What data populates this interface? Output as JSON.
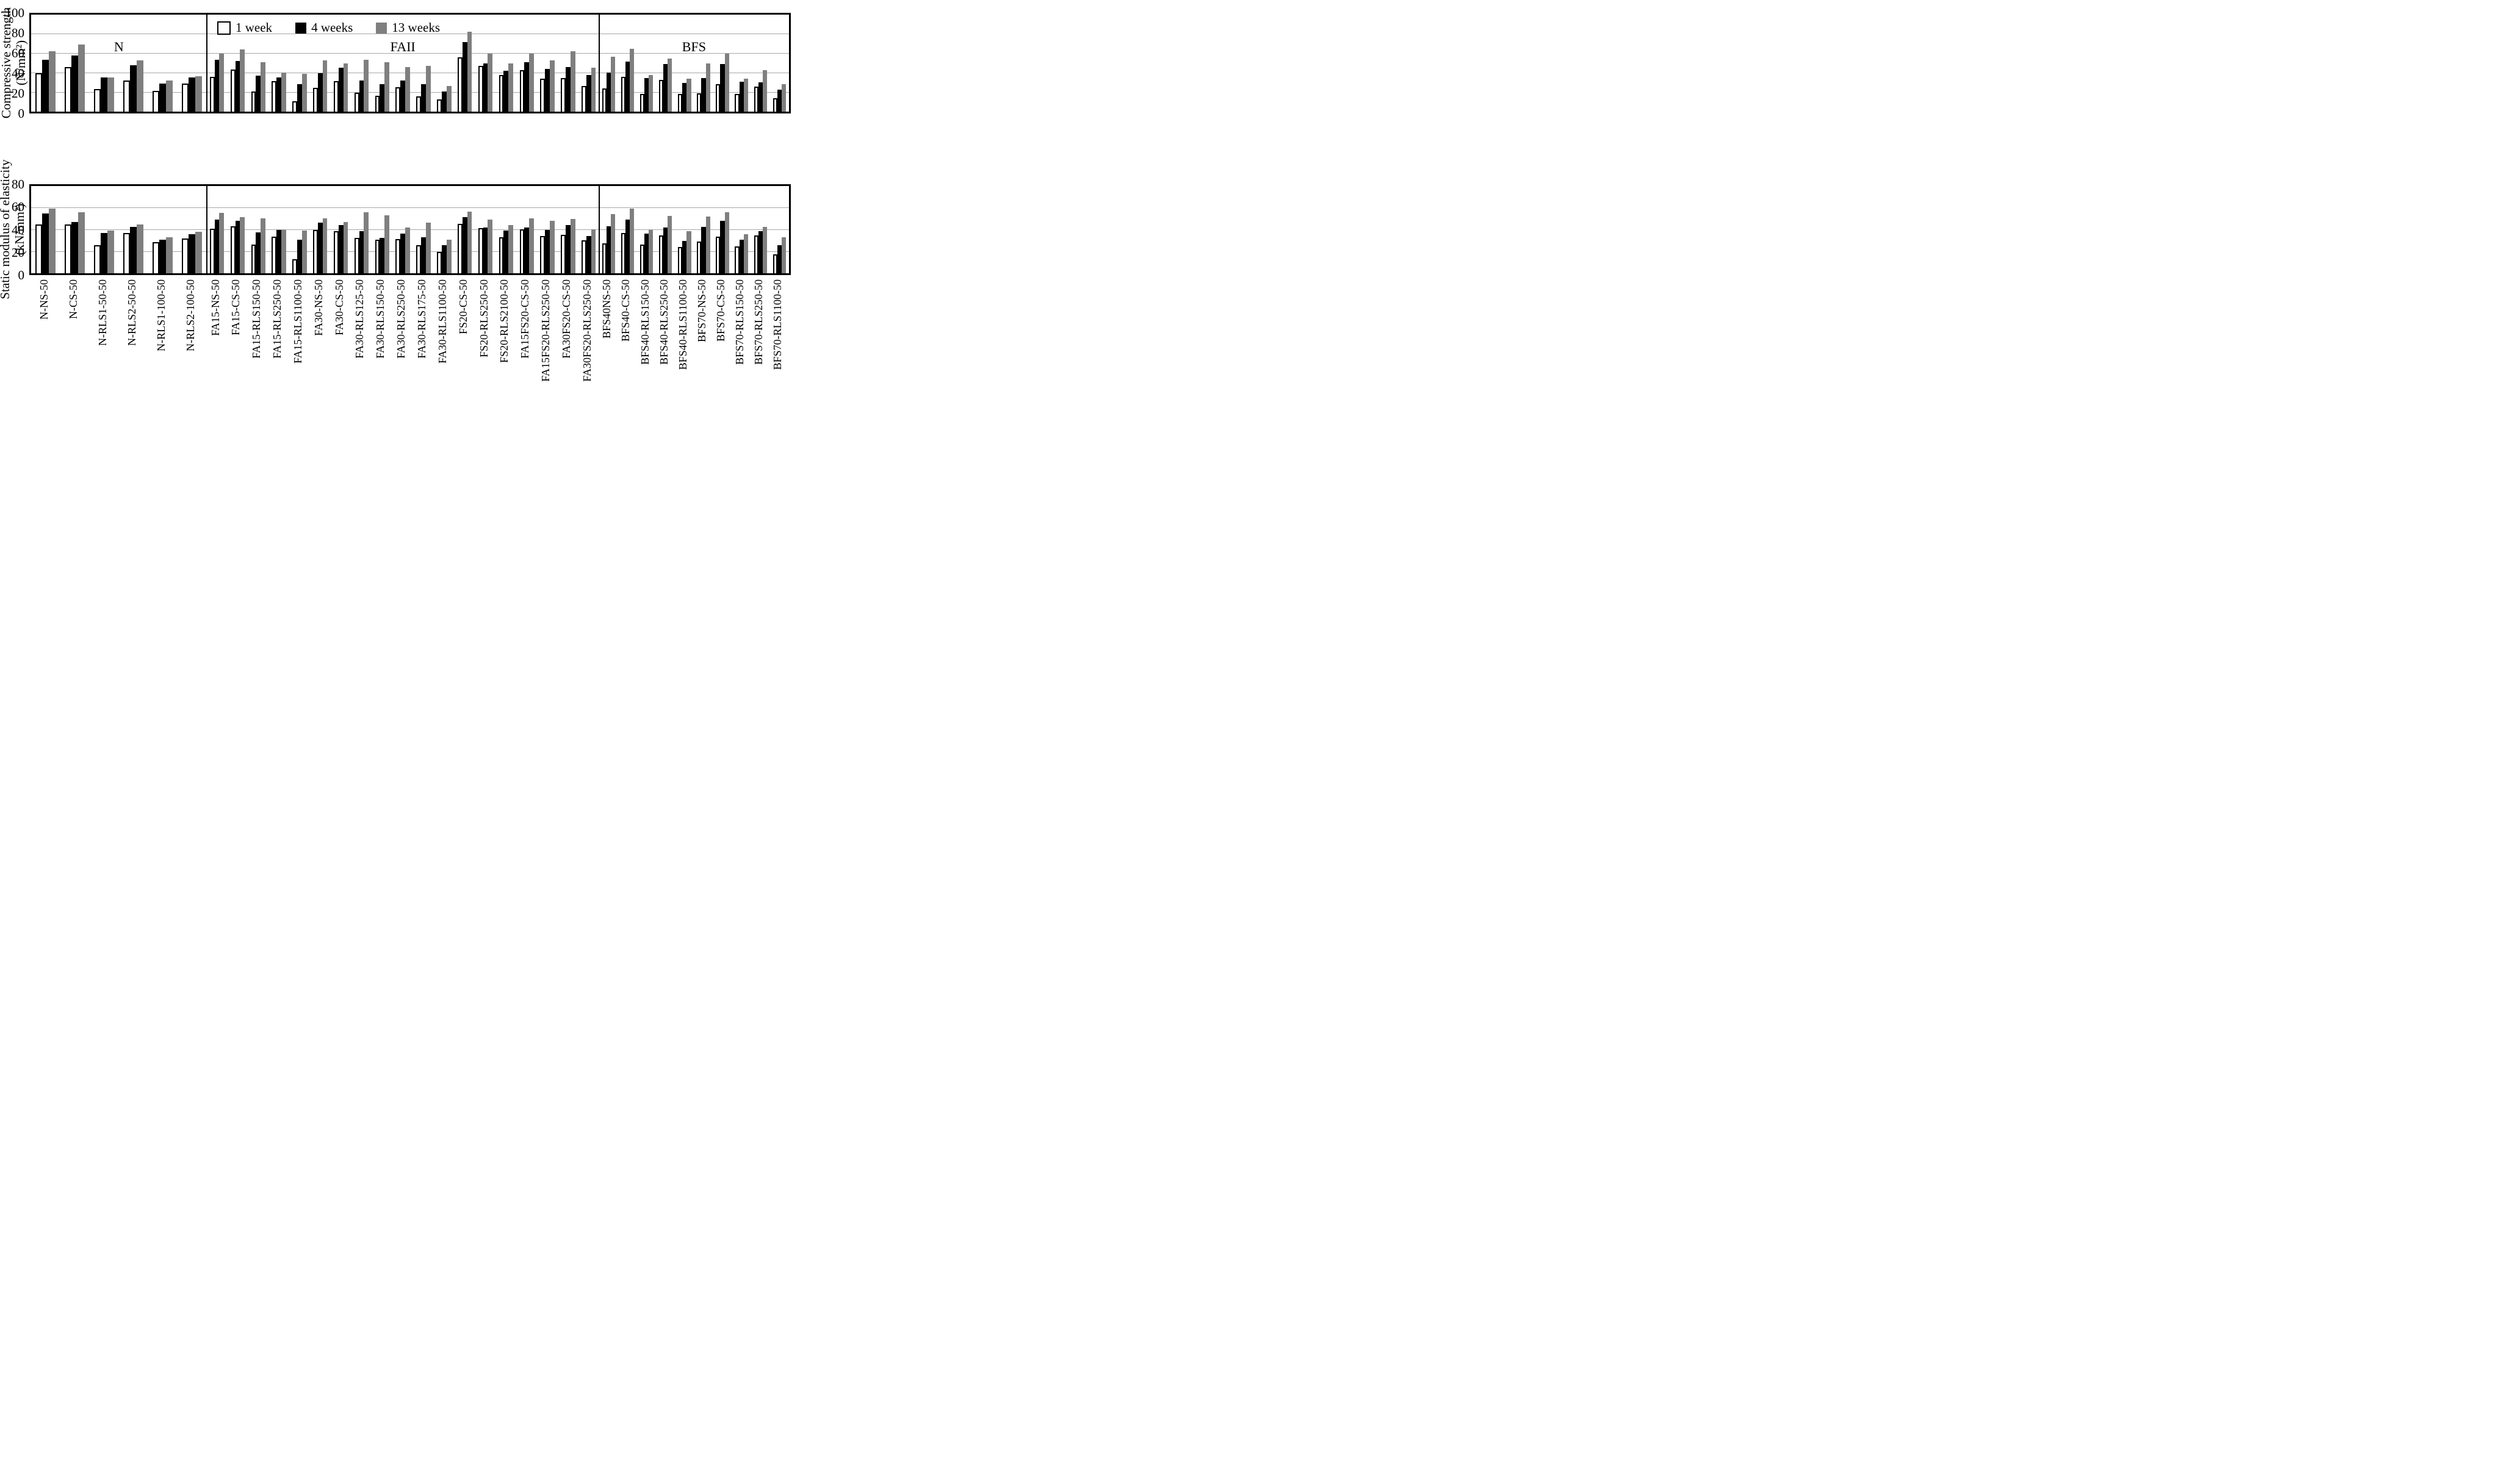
{
  "figure_title": "",
  "legend": {
    "items": [
      "1 week",
      "4 weeks",
      "13 weeks"
    ]
  },
  "colors": {
    "bar_1_week": "#ffffff",
    "bar_4_weeks": "#000000",
    "bar_13_weeks": "#7f7f7f",
    "bar_outline": "#000000",
    "gridline": "#a8a8a8",
    "frame": "#000000"
  },
  "chart_data": [
    {
      "type": "bar",
      "title": "",
      "ylabel_line1": "Compressive strength",
      "ylabel_line2": "(N/mm²)",
      "ylim": [
        0,
        100
      ],
      "yticks": [
        0,
        20,
        40,
        60,
        80,
        100
      ],
      "grid": "horizontal",
      "legend_entries": [
        "1 week",
        "4 weeks",
        "13 weeks"
      ],
      "legend_position": "inside-top",
      "show_section_labels": true,
      "sections": [
        {
          "label": "N",
          "categories": [
            "N-NS-50",
            "N-CS-50",
            "N-RLS1-50-50",
            "N-RLS2-50-50",
            "N-RLS1-100-50",
            "N-RLS2-100-50"
          ],
          "series": [
            {
              "name": "1 week",
              "values": [
                39.5,
                46,
                23.5,
                32,
                21.5,
                29
              ]
            },
            {
              "name": "4 weeks",
              "values": [
                53.5,
                58,
                35,
                48,
                29,
                35
              ]
            },
            {
              "name": "13 weeks",
              "values": [
                62,
                69,
                35.5,
                53,
                32,
                36.5
              ]
            }
          ]
        },
        {
          "label": "FAII",
          "categories": [
            "FA15-NS-50",
            "FA15-CS-50",
            "FA15-RLS150-50",
            "FA15-RLS250-50",
            "FA15-RLS1100-50",
            "FA30-NS-50",
            "FA30-CS-50",
            "FA30-RLS125-50",
            "FA30-RLS150-50",
            "FA30-RLS250-50",
            "FA30-RLS175-50",
            "FA30-RLS1100-50",
            "FS20-CS-50",
            "FS20-RLS250-50",
            "FS20-RLS2100-50",
            "FA15FS20-CS-50",
            "FA15FS20-RLS250-50",
            "FA30FS20-CS-50",
            "FA30FS20-RLS250-50"
          ],
          "series": [
            {
              "name": "1 week",
              "values": [
                36,
                43.5,
                21,
                31.5,
                11,
                24.5,
                31.5,
                19.5,
                16.5,
                25,
                15.5,
                12.5,
                56,
                47,
                37.5,
                42.5,
                34,
                34.5,
                26.5
              ]
            },
            {
              "name": "4 weeks",
              "values": [
                53.5,
                52.5,
                37,
                35.5,
                28,
                39.5,
                45,
                32,
                28.5,
                32,
                28,
                20.5,
                71.5,
                49.5,
                42,
                51,
                44,
                46,
                38
              ]
            },
            {
              "name": "13 weeks",
              "values": [
                60,
                64,
                51,
                40,
                39,
                53,
                49.5,
                53.5,
                51,
                46,
                47,
                26.5,
                82.5,
                59.5,
                49.5,
                60,
                53,
                62,
                45
              ]
            }
          ]
        },
        {
          "label": "BFS",
          "categories": [
            "BFS40NS-50",
            "BFS40-CS-50",
            "BFS40-RLS150-50",
            "BFS40-RLS250-50",
            "BFS40-RLS1100-50",
            "BFS70-NS-50",
            "BFS70-CS-50",
            "BFS70-RLS150-50",
            "BFS70-RLS250-50",
            "BFS70-RLS1100-50"
          ],
          "series": [
            {
              "name": "1 week",
              "values": [
                24,
                36,
                18.5,
                32.5,
                18.5,
                19,
                28,
                18.5,
                25.5,
                14
              ]
            },
            {
              "name": "4 weeks",
              "values": [
                40,
                51.5,
                34.5,
                49,
                29.5,
                34.5,
                49,
                31,
                30.5,
                22.5
              ]
            },
            {
              "name": "13 weeks",
              "values": [
                56.5,
                65,
                37.5,
                54.5,
                34,
                49.5,
                60,
                34,
                43,
                28
              ]
            }
          ]
        }
      ]
    },
    {
      "type": "bar",
      "title": "",
      "ylabel_line1": "Static modulus of elasticity",
      "ylabel_line2": "(kN/mm²)",
      "ylim": [
        0,
        80
      ],
      "yticks": [
        0,
        20,
        40,
        60,
        80
      ],
      "grid": "horizontal",
      "legend_entries": [
        "1 week",
        "4 weeks",
        "13 weeks"
      ],
      "legend_position": "none",
      "show_section_labels": false,
      "sections": [
        {
          "label": "N",
          "categories": [
            "N-NS-50",
            "N-CS-50",
            "N-RLS1-50-50",
            "N-RLS2-50-50",
            "N-RLS1-100-50",
            "N-RLS2-100-50"
          ],
          "series": [
            {
              "name": "1 week",
              "values": [
                44.5,
                44.5,
                26,
                37,
                28.5,
                32
              ]
            },
            {
              "name": "4 weeks",
              "values": [
                55,
                47,
                37,
                42.5,
                30.5,
                36
              ]
            },
            {
              "name": "13 weeks",
              "values": [
                59.5,
                56,
                39,
                45,
                33,
                38
              ]
            }
          ]
        },
        {
          "label": "FAII",
          "categories": [
            "FA15-NS-50",
            "FA15-CS-50",
            "FA15-RLS150-50",
            "FA15-RLS250-50",
            "FA15-RLS1100-50",
            "FA30-NS-50",
            "FA30-CS-50",
            "FA30-RLS125-50",
            "FA30-RLS150-50",
            "FA30-RLS250-50",
            "FA30-RLS175-50",
            "FA30-RLS1100-50",
            "FS20-CS-50",
            "FS20-RLS250-50",
            "FS20-RLS2100-50",
            "FA15FS20-CS-50",
            "FA15FS20-RLS250-50",
            "FA30FS20-CS-50",
            "FA30FS20-RLS250-50"
          ],
          "series": [
            {
              "name": "1 week",
              "values": [
                41,
                43,
                26.5,
                33.5,
                13,
                39.5,
                38.5,
                32.5,
                30.5,
                31.5,
                26,
                19.5,
                45.5,
                41.5,
                33,
                40.5,
                34,
                35.5,
                30
              ]
            },
            {
              "name": "4 weeks",
              "values": [
                49.5,
                48,
                37.5,
                39.5,
                30.5,
                46.5,
                44,
                38.5,
                32.5,
                36.5,
                33,
                26,
                51.5,
                42,
                39,
                42,
                39.5,
                44,
                34
              ]
            },
            {
              "name": "13 weeks",
              "values": [
                55.5,
                51.5,
                50.5,
                40,
                39,
                50.5,
                47,
                56,
                53,
                42,
                46.5,
                30.5,
                56.5,
                49.5,
                44,
                50.5,
                48,
                50,
                40.5
              ]
            }
          ]
        },
        {
          "label": "BFS",
          "categories": [
            "BFS40NS-50",
            "BFS40-CS-50",
            "BFS40-RLS150-50",
            "BFS40-RLS250-50",
            "BFS40-RLS1100-50",
            "BFS70-NS-50",
            "BFS70-CS-50",
            "BFS70-RLS150-50",
            "BFS70-RLS250-50",
            "BFS70-RLS1100-50"
          ],
          "series": [
            {
              "name": "1 week",
              "values": [
                27.5,
                37,
                26.5,
                34.5,
                24,
                29,
                33.5,
                24.5,
                34.5,
                17.5
              ]
            },
            {
              "name": "4 weeks",
              "values": [
                43,
                49,
                36.5,
                42,
                29.5,
                42.5,
                48,
                31,
                38.5,
                25.5
              ]
            },
            {
              "name": "13 weeks",
              "values": [
                54,
                59.5,
                40,
                52.5,
                38.5,
                52,
                56,
                36,
                42.5,
                33
              ]
            }
          ]
        }
      ]
    }
  ]
}
